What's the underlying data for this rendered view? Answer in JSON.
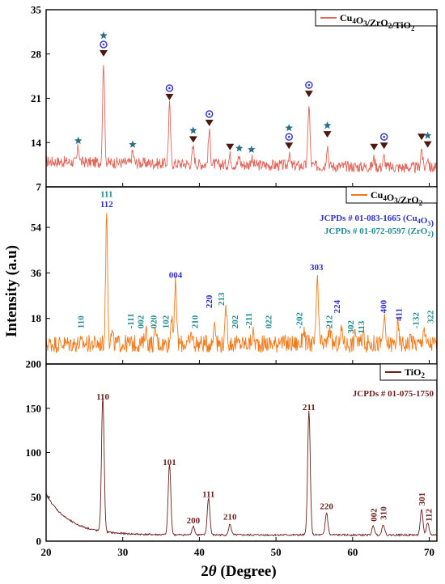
{
  "xaxis": {
    "label_prefix": "2",
    "label_theta": "θ",
    "label_suffix": " (Degree)",
    "range": [
      20,
      71
    ],
    "ticks": [
      20,
      30,
      40,
      50,
      60,
      70
    ]
  },
  "yaxis": {
    "label": "Intensity (a.u)"
  },
  "colors": {
    "top": "#e0655a",
    "middle": "#f07a1a",
    "bottom": "#6b1f1f",
    "blue": "#2d2fc8",
    "teal": "#1f8a8f",
    "star": "#2a6e8a",
    "tri": "#4a1a12",
    "circ": "#3a3cc0"
  },
  "chart_data": [
    {
      "type": "line",
      "panel": "top",
      "legend": {
        "base": "Cu",
        "sub1": "4",
        "mid1": "O",
        "sub2": "3",
        "mid2": "/ZrO",
        "sub3": "2",
        "mid3": "/TiO",
        "sub4": "2"
      },
      "ylim": [
        7,
        35
      ],
      "yticks": [
        7,
        14,
        21,
        28,
        35
      ],
      "baseline": 11,
      "peaks": [
        [
          24.2,
          13.4
        ],
        [
          27.5,
          27.2
        ],
        [
          31.3,
          12.8
        ],
        [
          36.1,
          20.3
        ],
        [
          39.2,
          13.6
        ],
        [
          41.3,
          16.2
        ],
        [
          44.0,
          12.4
        ],
        [
          45.2,
          12.2
        ],
        [
          46.8,
          12.0
        ],
        [
          51.7,
          12.6
        ],
        [
          54.3,
          20.8
        ],
        [
          56.7,
          14.4
        ],
        [
          62.8,
          12.4
        ],
        [
          64.1,
          12.6
        ],
        [
          69.0,
          14.0
        ],
        [
          69.8,
          12.8
        ]
      ],
      "markers": [
        {
          "x": 24.2,
          "types": [
            "star"
          ]
        },
        {
          "x": 27.5,
          "types": [
            "tri",
            "circ",
            "star"
          ]
        },
        {
          "x": 31.3,
          "types": [
            "star"
          ]
        },
        {
          "x": 36.1,
          "types": [
            "tri",
            "circ"
          ]
        },
        {
          "x": 39.2,
          "types": [
            "tri",
            "star"
          ]
        },
        {
          "x": 41.3,
          "types": [
            "tri",
            "circ"
          ]
        },
        {
          "x": 44.0,
          "types": [
            "tri"
          ]
        },
        {
          "x": 45.2,
          "types": [
            "star"
          ]
        },
        {
          "x": 46.8,
          "types": [
            "star"
          ]
        },
        {
          "x": 51.7,
          "types": [
            "tri",
            "circ",
            "star"
          ]
        },
        {
          "x": 54.3,
          "types": [
            "tri",
            "circ"
          ]
        },
        {
          "x": 56.7,
          "types": [
            "tri",
            "star"
          ]
        },
        {
          "x": 62.8,
          "types": [
            "tri"
          ]
        },
        {
          "x": 64.1,
          "types": [
            "tri",
            "circ"
          ]
        },
        {
          "x": 69.0,
          "types": [
            "tri"
          ]
        },
        {
          "x": 69.8,
          "types": [
            "tri",
            "star"
          ]
        }
      ]
    },
    {
      "type": "line",
      "panel": "middle",
      "legend": {
        "base": "Cu",
        "sub1": "4",
        "mid1": "O",
        "sub2": "3",
        "mid2": "/ZrO",
        "sub3": "2"
      },
      "ylim": [
        0,
        70
      ],
      "yticks": [
        18,
        36,
        54
      ],
      "baseline": 8,
      "jcpds": [
        {
          "text": "JCPDs # 01-083-1665 (Cu",
          "sub": "4",
          "mid": "O",
          "sub2": "3",
          "end": ")",
          "color": "blue"
        },
        {
          "text": "JCPDs # 01-072-0597 (ZrO",
          "sub": "2",
          "end": ")",
          "color": "teal"
        }
      ],
      "peaks": [
        [
          27.9,
          60
        ],
        [
          28.6,
          12
        ],
        [
          33.0,
          14
        ],
        [
          34.3,
          13
        ],
        [
          36.4,
          20
        ],
        [
          36.9,
          32
        ],
        [
          39.0,
          12
        ],
        [
          42.0,
          18
        ],
        [
          43.5,
          22
        ],
        [
          47.0,
          12
        ],
        [
          50.5,
          11
        ],
        [
          53.6,
          14
        ],
        [
          55.4,
          35
        ],
        [
          57.0,
          15
        ],
        [
          58.6,
          14
        ],
        [
          60.4,
          13
        ],
        [
          61.4,
          12
        ],
        [
          64.1,
          18
        ],
        [
          65.9,
          15
        ],
        [
          67.6,
          11
        ],
        [
          69.3,
          15
        ]
      ],
      "labels": [
        {
          "x": 24.5,
          "text": "110",
          "color": "teal",
          "y": 14
        },
        {
          "x": 27.9,
          "text": "111",
          "color": "teal",
          "y": 66,
          "horizontal": true
        },
        {
          "x": 27.9,
          "text": "112",
          "color": "blue",
          "y": 62,
          "horizontal": true
        },
        {
          "x": 31.0,
          "text": "-111",
          "color": "teal",
          "y": 14
        },
        {
          "x": 32.3,
          "text": "002",
          "color": "teal",
          "y": 14
        },
        {
          "x": 34.0,
          "text": "020",
          "color": "teal",
          "y": 14
        },
        {
          "x": 35.6,
          "text": "102",
          "color": "teal",
          "y": 14
        },
        {
          "x": 36.9,
          "text": "004",
          "color": "blue",
          "y": 34,
          "horizontal": true
        },
        {
          "x": 39.4,
          "text": "210",
          "color": "teal",
          "y": 14
        },
        {
          "x": 41.2,
          "text": "220",
          "color": "blue",
          "y": 22
        },
        {
          "x": 42.8,
          "text": "213",
          "color": "teal",
          "y": 23
        },
        {
          "x": 44.6,
          "text": "202",
          "color": "teal",
          "y": 14
        },
        {
          "x": 46.4,
          "text": "-211",
          "color": "teal",
          "y": 14
        },
        {
          "x": 49.0,
          "text": "022",
          "color": "teal",
          "y": 14
        },
        {
          "x": 53.0,
          "text": "-202",
          "color": "teal",
          "y": 14
        },
        {
          "x": 55.3,
          "text": "303",
          "color": "blue",
          "y": 37,
          "horizontal": true
        },
        {
          "x": 56.9,
          "text": "212",
          "color": "teal",
          "y": 14
        },
        {
          "x": 57.9,
          "text": "224",
          "color": "blue",
          "y": 20
        },
        {
          "x": 59.7,
          "text": "302",
          "color": "teal",
          "y": 12
        },
        {
          "x": 61.1,
          "text": "113",
          "color": "teal",
          "y": 12
        },
        {
          "x": 64.0,
          "text": "400",
          "color": "blue",
          "y": 20
        },
        {
          "x": 66.0,
          "text": "411",
          "color": "blue",
          "y": 17
        },
        {
          "x": 68.2,
          "text": "-132",
          "color": "teal",
          "y": 14
        },
        {
          "x": 70.1,
          "text": "322",
          "color": "teal",
          "y": 16
        }
      ]
    },
    {
      "type": "line",
      "panel": "bottom",
      "legend": {
        "base": "TiO",
        "sub1": "2"
      },
      "ylim": [
        0,
        200
      ],
      "yticks": [
        0,
        50,
        100,
        150,
        200
      ],
      "jcpds": [
        {
          "text": "JCPDs # 01-075-1750",
          "color": "bottom"
        }
      ],
      "peaks": [
        [
          27.4,
          152
        ],
        [
          36.1,
          80
        ],
        [
          39.2,
          10
        ],
        [
          41.2,
          42
        ],
        [
          44.0,
          12
        ],
        [
          54.3,
          140
        ],
        [
          56.6,
          25
        ],
        [
          62.7,
          10
        ],
        [
          64.0,
          12
        ],
        [
          69.0,
          28
        ],
        [
          69.8,
          14
        ]
      ],
      "labels": [
        {
          "x": 27.4,
          "text": "110",
          "y": 160
        },
        {
          "x": 36.1,
          "text": "101",
          "y": 86
        },
        {
          "x": 39.2,
          "text": "200",
          "y": 20
        },
        {
          "x": 41.2,
          "text": "111",
          "y": 50
        },
        {
          "x": 44.0,
          "text": "210",
          "y": 24
        },
        {
          "x": 54.3,
          "text": "211",
          "y": 148
        },
        {
          "x": 56.6,
          "text": "220",
          "y": 36
        },
        {
          "x": 62.7,
          "text": "002",
          "y": 22,
          "vertical": true
        },
        {
          "x": 64.0,
          "text": "310",
          "y": 24,
          "vertical": true
        },
        {
          "x": 69.0,
          "text": "301",
          "y": 40,
          "vertical": true
        },
        {
          "x": 69.9,
          "text": "112",
          "y": 22,
          "vertical": true
        }
      ]
    }
  ]
}
